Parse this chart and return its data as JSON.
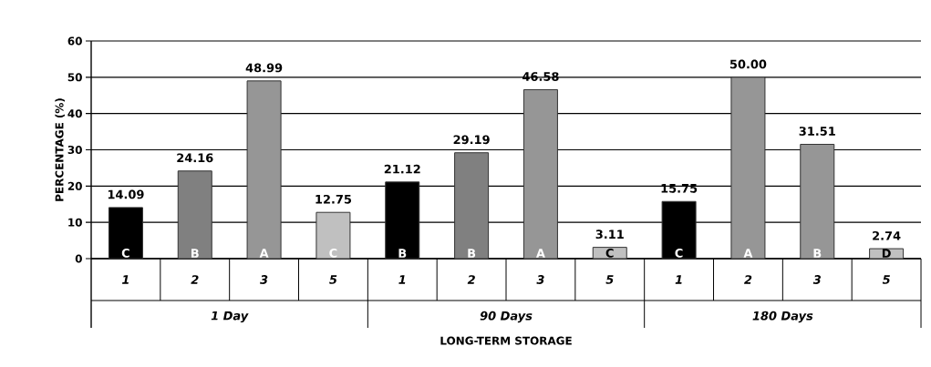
{
  "chart_data": {
    "type": "bar",
    "xlabel": "LONG-TERM STORAGE",
    "ylabel": "PERCENTAGE (%)",
    "categories": [
      "1",
      "2",
      "3",
      "5",
      "1",
      "2",
      "3",
      "5",
      "1",
      "2",
      "3",
      "5"
    ],
    "values": [
      14.09,
      24.16,
      48.99,
      12.75,
      21.12,
      29.19,
      46.58,
      3.11,
      15.75,
      50.0,
      31.51,
      2.74
    ],
    "colors": [
      "#000000",
      "#808080",
      "#969696",
      "#c0c0c0",
      "#000000",
      "#808080",
      "#969696",
      "#c0c0c0",
      "#000000",
      "#969696",
      "#969696",
      "#c0c0c0"
    ],
    "value_labels": [
      "14.09",
      "24.16",
      "48.99",
      "12.75",
      "21.12",
      "29.19",
      "46.58",
      "3.11",
      "15.75",
      "50.00",
      "31.51",
      "2.74"
    ],
    "annotations": [
      "1 Day",
      "90 Days",
      "180 Days",
      "C",
      "B",
      "A",
      "C",
      "B",
      "B",
      "A",
      "C",
      "C",
      "A",
      "B",
      "D"
    ],
    "ylim": [
      0,
      60
    ],
    "yticks": [
      0,
      10,
      20,
      30,
      40,
      50,
      60
    ],
    "grid": "y"
  }
}
